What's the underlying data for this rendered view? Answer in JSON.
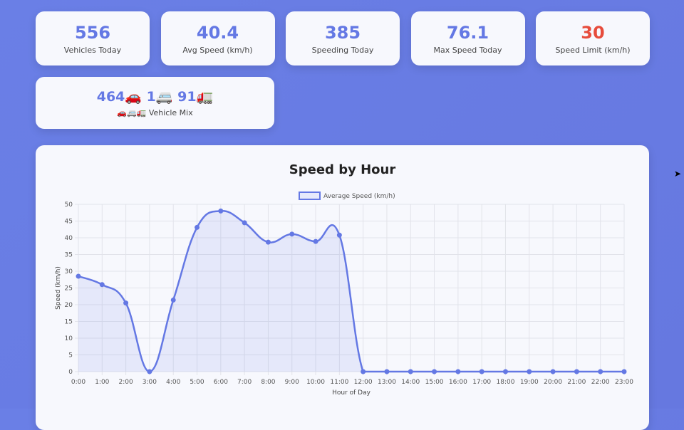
{
  "stats": [
    {
      "value": "556",
      "label": "Vehicles Today",
      "color": "#6478e4"
    },
    {
      "value": "40.4",
      "label": "Avg Speed (km/h)",
      "color": "#6478e4"
    },
    {
      "value": "385",
      "label": "Speeding Today",
      "color": "#6478e4"
    },
    {
      "value": "76.1",
      "label": "Max Speed Today",
      "color": "#6478e4"
    },
    {
      "value": "30",
      "label": "Speed Limit (km/h)",
      "color": "#e74c3c"
    }
  ],
  "mix": {
    "value": "464🚗 1🚐 91🚛",
    "label": "🚗🚐🚛 Vehicle Mix"
  },
  "chart_data": {
    "type": "line",
    "title": "Speed by Hour",
    "xlabel": "Hour of Day",
    "ylabel": "Speed (km/h)",
    "ylim": [
      0,
      50
    ],
    "yticks": [
      0,
      5,
      10,
      15,
      20,
      25,
      30,
      35,
      40,
      45,
      50
    ],
    "grid": true,
    "legend": "top",
    "categories": [
      "0:00",
      "1:00",
      "2:00",
      "3:00",
      "4:00",
      "5:00",
      "6:00",
      "7:00",
      "8:00",
      "9:00",
      "10:00",
      "11:00",
      "12:00",
      "13:00",
      "14:00",
      "15:00",
      "16:00",
      "17:00",
      "18:00",
      "19:00",
      "20:00",
      "21:00",
      "22:00",
      "23:00"
    ],
    "series": [
      {
        "name": "Average Speed (km/h)",
        "color": "#6478e4",
        "values": [
          28.5,
          26,
          20.5,
          0,
          21.4,
          43.1,
          48,
          44.5,
          38.7,
          41.1,
          38.9,
          40.8,
          0,
          0,
          0,
          0,
          0,
          0,
          0,
          0,
          0,
          0,
          0,
          0
        ]
      }
    ]
  }
}
